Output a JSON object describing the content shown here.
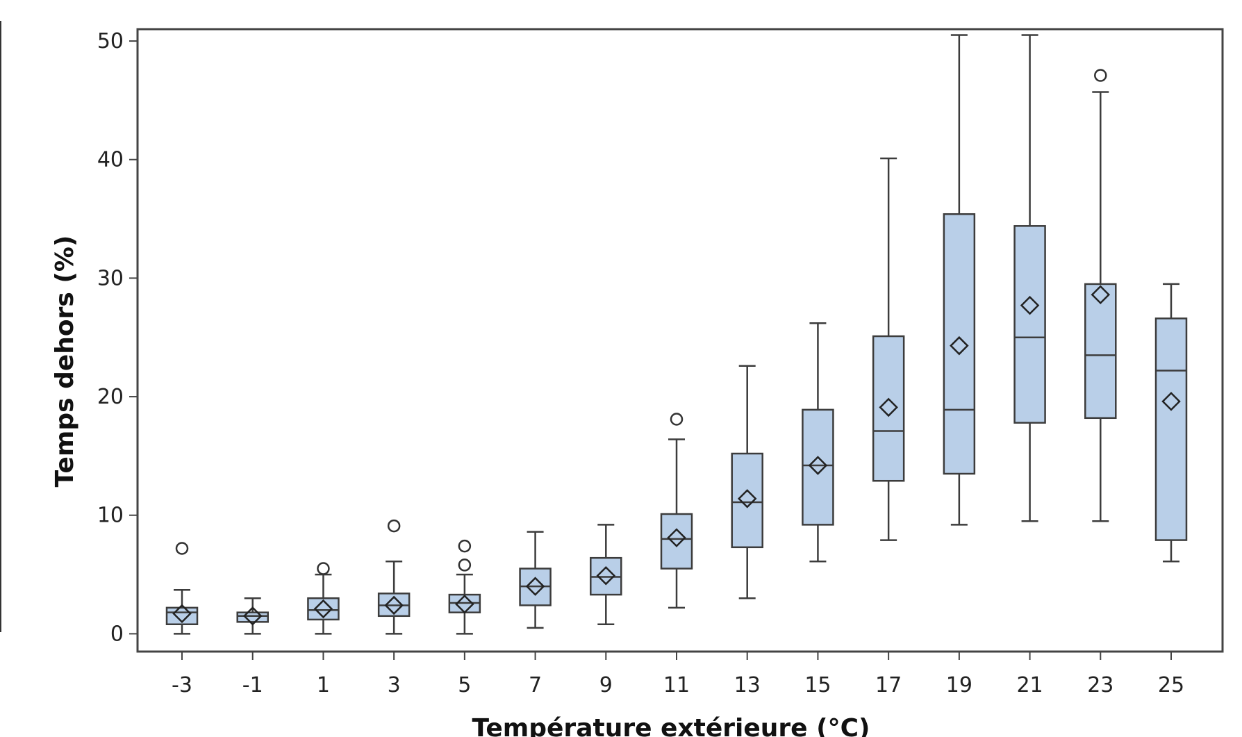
{
  "chart_data": {
    "type": "box",
    "title": "",
    "xlabel": "Température extérieure (°C)",
    "ylabel": "Temps dehors (%)",
    "ylim": [
      -1.5,
      51
    ],
    "y_ticks": [
      0,
      10,
      20,
      30,
      40,
      50
    ],
    "grid": false,
    "legend": "none",
    "colors": {
      "box_fill": "#b9cfe8",
      "box_stroke": "#3c3c3c",
      "frame": "#444444"
    },
    "categories": [
      "-3",
      "-1",
      "1",
      "3",
      "5",
      "7",
      "9",
      "11",
      "13",
      "15",
      "17",
      "19",
      "21",
      "23",
      "25"
    ],
    "boxes": [
      {
        "x": "-3",
        "whisker_low": 0.0,
        "q1": 0.8,
        "median": 1.8,
        "q3": 2.2,
        "whisker_high": 3.7,
        "mean": 1.7,
        "outliers": [
          7.2
        ]
      },
      {
        "x": "-1",
        "whisker_low": 0.0,
        "q1": 1.0,
        "median": 1.5,
        "q3": 1.8,
        "whisker_high": 3.0,
        "mean": 1.5,
        "outliers": []
      },
      {
        "x": "1",
        "whisker_low": 0.0,
        "q1": 1.2,
        "median": 2.0,
        "q3": 3.0,
        "whisker_high": 5.0,
        "mean": 2.1,
        "outliers": [
          5.5
        ]
      },
      {
        "x": "3",
        "whisker_low": 0.0,
        "q1": 1.5,
        "median": 2.4,
        "q3": 3.4,
        "whisker_high": 6.1,
        "mean": 2.4,
        "outliers": [
          9.1
        ]
      },
      {
        "x": "5",
        "whisker_low": 0.0,
        "q1": 1.8,
        "median": 2.6,
        "q3": 3.3,
        "whisker_high": 5.0,
        "mean": 2.5,
        "outliers": [
          5.8,
          7.4
        ]
      },
      {
        "x": "7",
        "whisker_low": 0.5,
        "q1": 2.4,
        "median": 4.0,
        "q3": 5.5,
        "whisker_high": 8.6,
        "mean": 4.0,
        "outliers": []
      },
      {
        "x": "9",
        "whisker_low": 0.8,
        "q1": 3.3,
        "median": 4.8,
        "q3": 6.4,
        "whisker_high": 9.2,
        "mean": 4.9,
        "outliers": []
      },
      {
        "x": "11",
        "whisker_low": 2.2,
        "q1": 5.5,
        "median": 8.0,
        "q3": 10.1,
        "whisker_high": 16.4,
        "mean": 8.1,
        "outliers": [
          18.1
        ]
      },
      {
        "x": "13",
        "whisker_low": 3.0,
        "q1": 7.3,
        "median": 11.1,
        "q3": 15.2,
        "whisker_high": 22.6,
        "mean": 11.4,
        "outliers": []
      },
      {
        "x": "15",
        "whisker_low": 6.1,
        "q1": 9.2,
        "median": 14.2,
        "q3": 18.9,
        "whisker_high": 26.2,
        "mean": 14.2,
        "outliers": []
      },
      {
        "x": "17",
        "whisker_low": 7.9,
        "q1": 12.9,
        "median": 17.1,
        "q3": 25.1,
        "whisker_high": 40.1,
        "mean": 19.1,
        "outliers": []
      },
      {
        "x": "19",
        "whisker_low": 9.2,
        "q1": 13.5,
        "median": 18.9,
        "q3": 35.4,
        "whisker_high": 50.5,
        "mean": 24.3,
        "outliers": []
      },
      {
        "x": "21",
        "whisker_low": 9.5,
        "q1": 17.8,
        "median": 25.0,
        "q3": 34.4,
        "whisker_high": 50.5,
        "mean": 27.7,
        "outliers": []
      },
      {
        "x": "23",
        "whisker_low": 9.5,
        "q1": 18.2,
        "median": 23.5,
        "q3": 29.5,
        "whisker_high": 45.7,
        "mean": 28.6,
        "outliers": [
          47.1
        ]
      },
      {
        "x": "25",
        "whisker_low": 6.1,
        "q1": 7.9,
        "median": 22.2,
        "q3": 26.6,
        "whisker_high": 29.5,
        "mean": 19.6,
        "outliers": []
      }
    ]
  }
}
